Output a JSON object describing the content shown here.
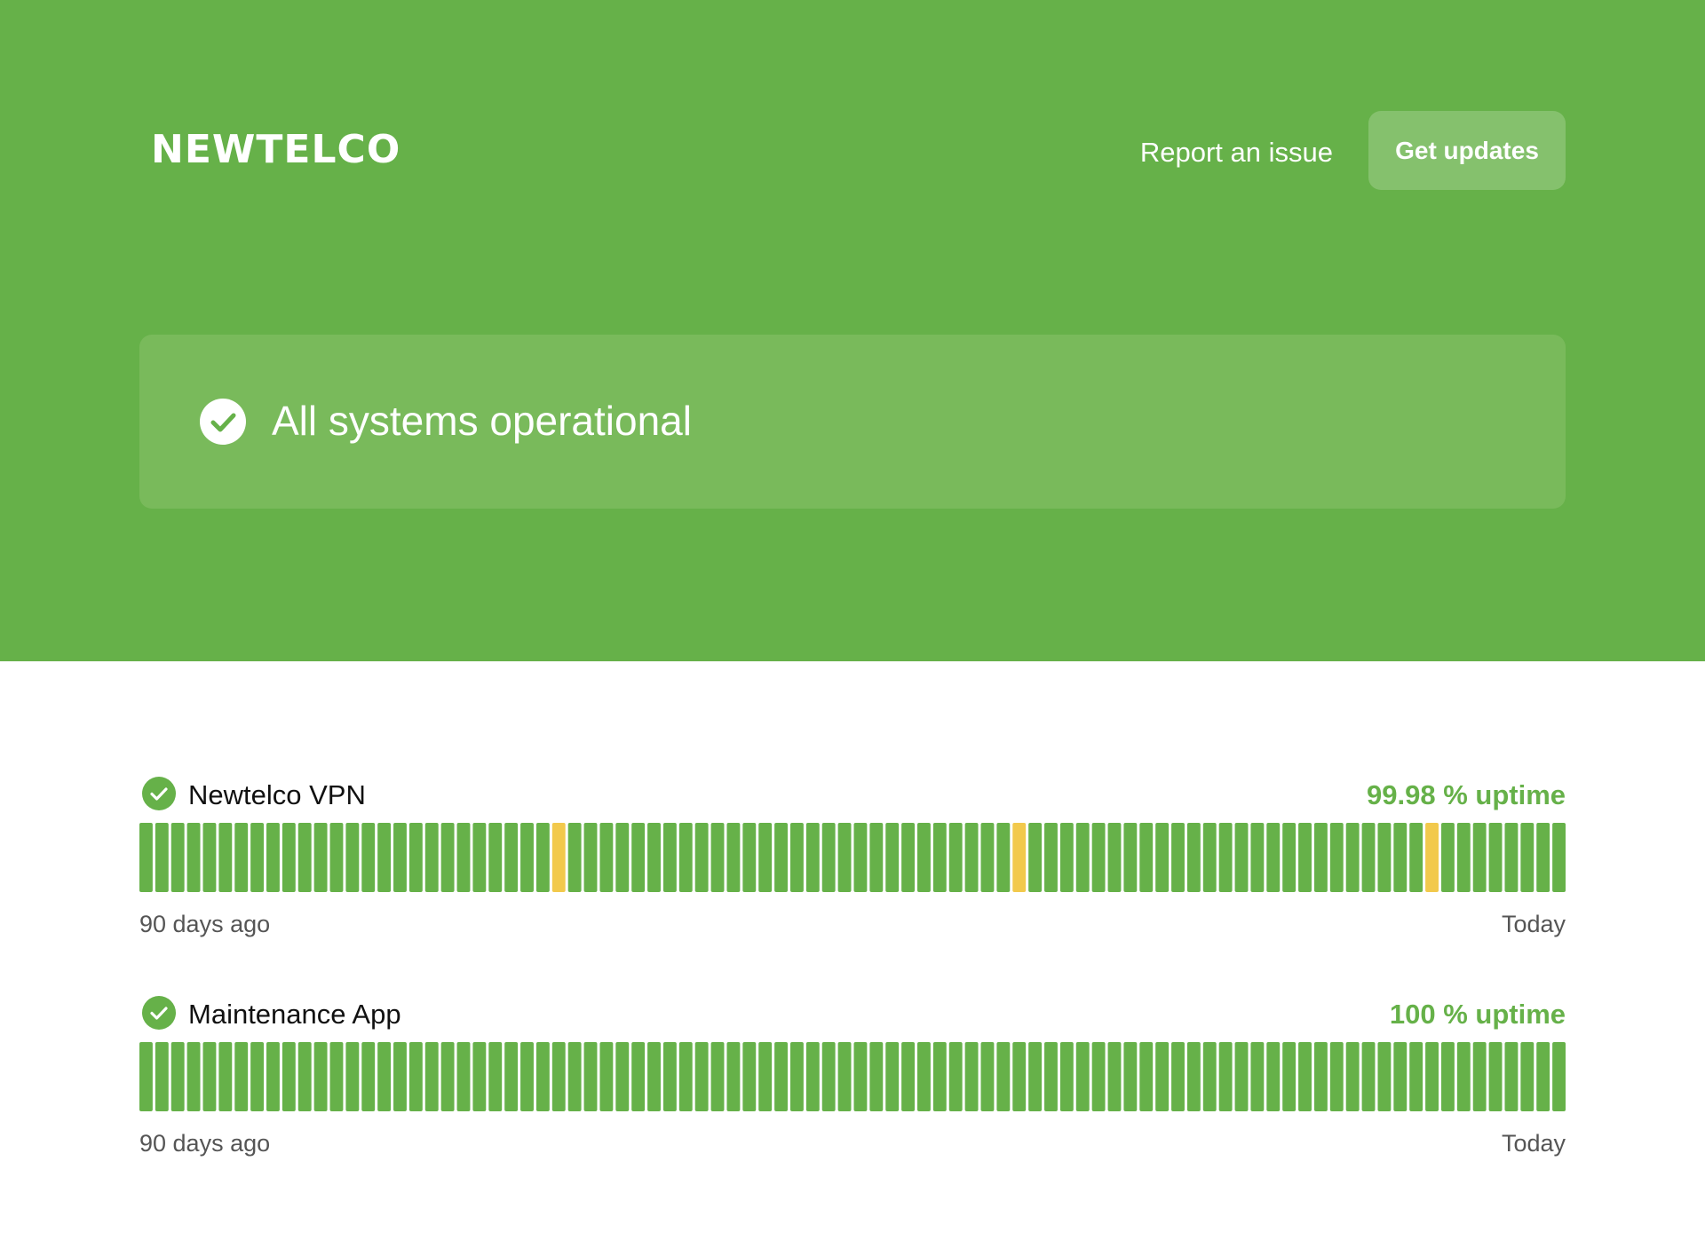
{
  "header": {
    "logo_text": "NEWTELCO",
    "report_link": "Report an issue",
    "updates_button": "Get updates"
  },
  "status_banner": {
    "icon": "check-circle-icon",
    "text": "All systems operational"
  },
  "components": [
    {
      "name": "Newtelco VPN",
      "status_icon": "check-circle-icon",
      "uptime_text": "99.98 % uptime",
      "range_start": "90 days ago",
      "range_end": "Today",
      "day_count": 90,
      "degraded_days": [
        26,
        55,
        81
      ]
    },
    {
      "name": "Maintenance App",
      "status_icon": "check-circle-icon",
      "uptime_text": "100 % uptime",
      "range_start": "90 days ago",
      "range_end": "Today",
      "day_count": 90,
      "degraded_days": []
    }
  ],
  "colors": {
    "brand_green": "#66b149",
    "banner_green": "#79ba5b",
    "button_green": "#85c16d",
    "degraded_yellow": "#f2c94c"
  }
}
